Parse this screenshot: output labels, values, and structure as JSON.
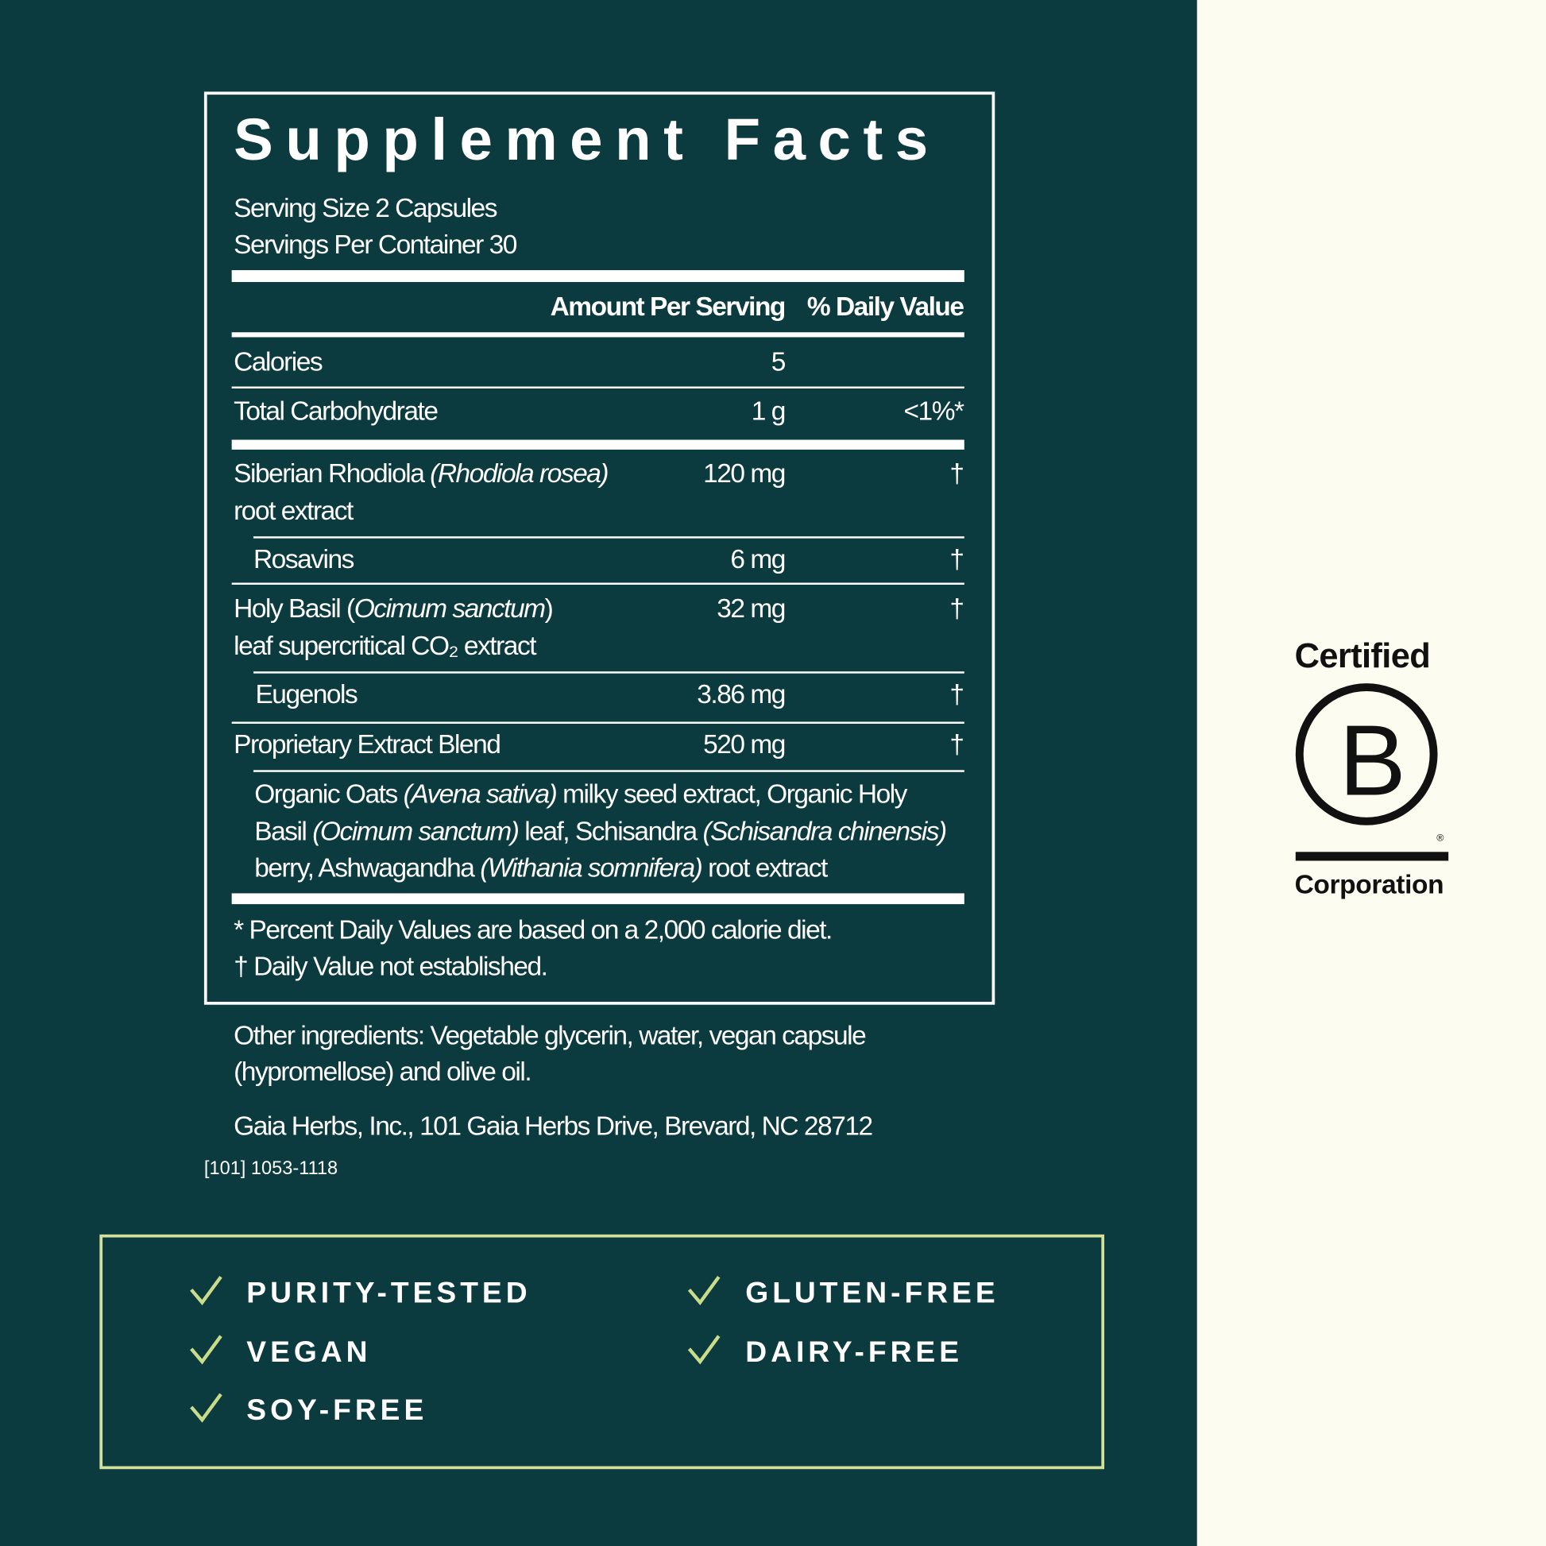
{
  "facts": {
    "title": "Supplement Facts",
    "serving_size": "Serving Size 2 Capsules",
    "servings_per_container": "Servings Per Container 30",
    "col_amount": "Amount Per Serving",
    "col_dv": "% Daily Value",
    "rows": [
      {
        "name": "Calories",
        "amount": "5",
        "dv": ""
      },
      {
        "name": "Total Carbohydrate",
        "amount": "1 g",
        "dv": "<1%*"
      },
      {
        "name": "Siberian Rhodiola ",
        "latin": "(Rhodiola rosea)",
        "name2": "root extract",
        "amount": "120 mg",
        "dv": "†"
      },
      {
        "name": "Rosavins",
        "amount": "6 mg",
        "dv": "†"
      },
      {
        "name": "Holy Basil (",
        "latin": "Ocimum sanctum",
        "name_end": ")",
        "name2": "leaf supercritical CO₂ extract",
        "amount": "32 mg",
        "dv": "†"
      },
      {
        "name": "Eugenols",
        "amount": "3.86 mg",
        "dv": "†"
      },
      {
        "name": "Proprietary Extract Blend",
        "amount": "520 mg",
        "dv": "†"
      }
    ],
    "blend": {
      "l1a": "Organic Oats ",
      "l1b": "(Avena sativa)",
      "l1c": " milky seed extract, Organic Holy",
      "l2a": "Basil ",
      "l2b": "(Ocimum sanctum)",
      "l2c": " leaf, Schisandra ",
      "l2d": "(Schisandra chinensis)",
      "l3a": "berry, Ashwagandha ",
      "l3b": "(Withania somnifera)",
      "l3c": " root extract"
    },
    "footnote1": "* Percent Daily Values are based on a 2,000 calorie diet.",
    "footnote2": "† Daily Value not established."
  },
  "other_ingredients_1": "Other ingredients: Vegetable glycerin, water, vegan capsule",
  "other_ingredients_2": "(hypromellose) and olive oil.",
  "address": "Gaia Herbs, Inc., 101 Gaia Herbs Drive, Brevard, NC 28712",
  "code": "[101] 1053-1118",
  "claims": [
    "PURITY-TESTED",
    "VEGAN",
    "SOY-FREE",
    "GLUTEN-FREE",
    "DAIRY-FREE"
  ],
  "logo": {
    "top": "Certified",
    "letter": "B",
    "bottom": "Corporation",
    "reg": "®"
  },
  "colors": {
    "panel": "#0b3a3f",
    "background": "#fdfcf1",
    "accent": "#d3e09a"
  }
}
